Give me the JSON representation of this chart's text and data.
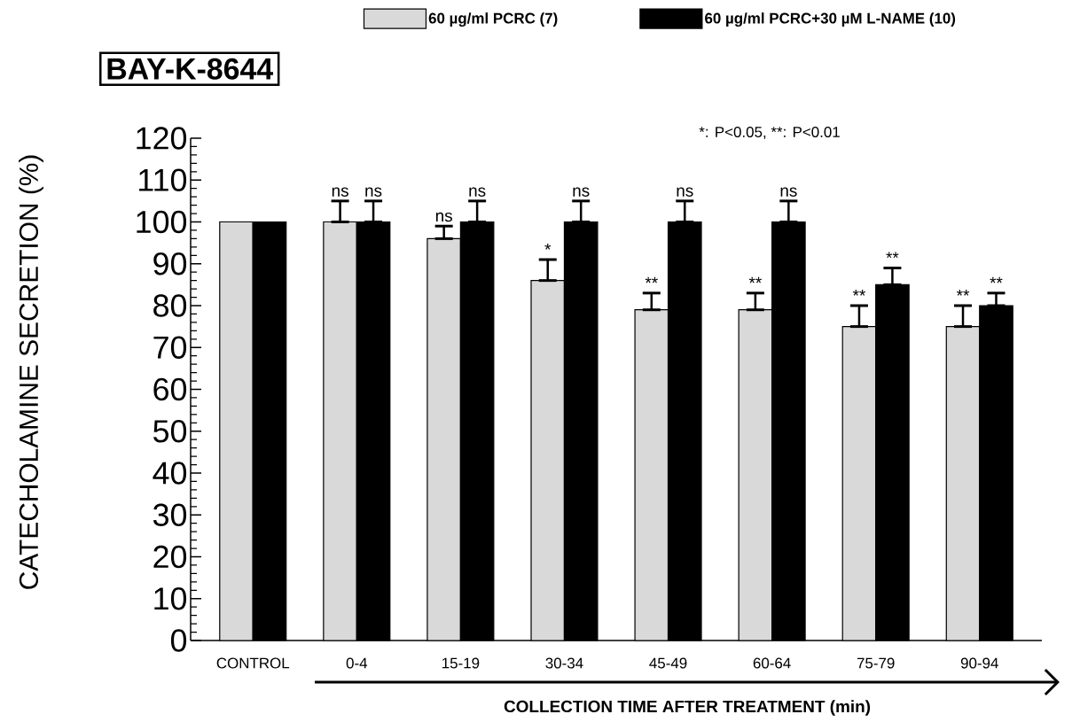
{
  "chart_data": {
    "type": "bar",
    "title": "BAY-K-8644",
    "xlabel": "COLLECTION TIME AFTER TREATMENT (min)",
    "ylabel": "CATECHOLAMINE SECRETION (%)",
    "categories": [
      "CONTROL",
      "0-4",
      "15-19",
      "30-34",
      "45-49",
      "60-64",
      "75-79",
      "90-94"
    ],
    "series": [
      {
        "name": "60 µg/ml PCRC (7)",
        "color": "#d9d9d9",
        "values": [
          100,
          100,
          96,
          86,
          79,
          79,
          75,
          75
        ],
        "errors": [
          null,
          [
            100,
            105
          ],
          [
            96,
            99
          ],
          [
            86,
            91
          ],
          [
            79,
            83
          ],
          [
            79,
            83
          ],
          [
            75,
            80
          ],
          [
            75,
            80
          ]
        ]
      },
      {
        "name": "60 µg/ml PCRC+30 µM L-NAME (10)",
        "color": "#000000",
        "values": [
          100,
          100,
          100,
          100,
          100,
          100,
          85,
          80
        ],
        "errors": [
          null,
          [
            100,
            105
          ],
          [
            100,
            105
          ],
          [
            100,
            105
          ],
          [
            100,
            105
          ],
          [
            100,
            105
          ],
          [
            85,
            89
          ],
          [
            80,
            83
          ]
        ]
      }
    ],
    "ylim": [
      0,
      120
    ],
    "yticks": [
      0,
      10,
      20,
      30,
      40,
      50,
      60,
      70,
      80,
      90,
      100,
      110,
      120
    ],
    "legend": "top",
    "annotations": [
      "*: P<0.05, **: P<0.01",
      {
        "text": "ns",
        "x": "0-4",
        "y": 100
      },
      {
        "text": "ns",
        "x": "0-4",
        "y": 100
      },
      {
        "text": "ns",
        "x": "15-19",
        "y": 96
      },
      {
        "text": "ns",
        "x": "15-19",
        "y": 100
      },
      {
        "text": "*",
        "x": "30-34",
        "y": 86
      },
      {
        "text": "ns",
        "x": "30-34",
        "y": 100
      },
      {
        "text": "**",
        "x": "45-49",
        "y": 79
      },
      {
        "text": "ns",
        "x": "45-49",
        "y": 100
      },
      {
        "text": "**",
        "x": "60-64",
        "y": 79
      },
      {
        "text": "ns",
        "x": "60-64",
        "y": 100
      },
      {
        "text": "**",
        "x": "75-79",
        "y": 75
      },
      {
        "text": "**",
        "x": "75-79",
        "y": 85
      },
      {
        "text": "**",
        "x": "90-94",
        "y": 75
      },
      {
        "text": "**",
        "x": "90-94",
        "y": 80
      }
    ]
  }
}
